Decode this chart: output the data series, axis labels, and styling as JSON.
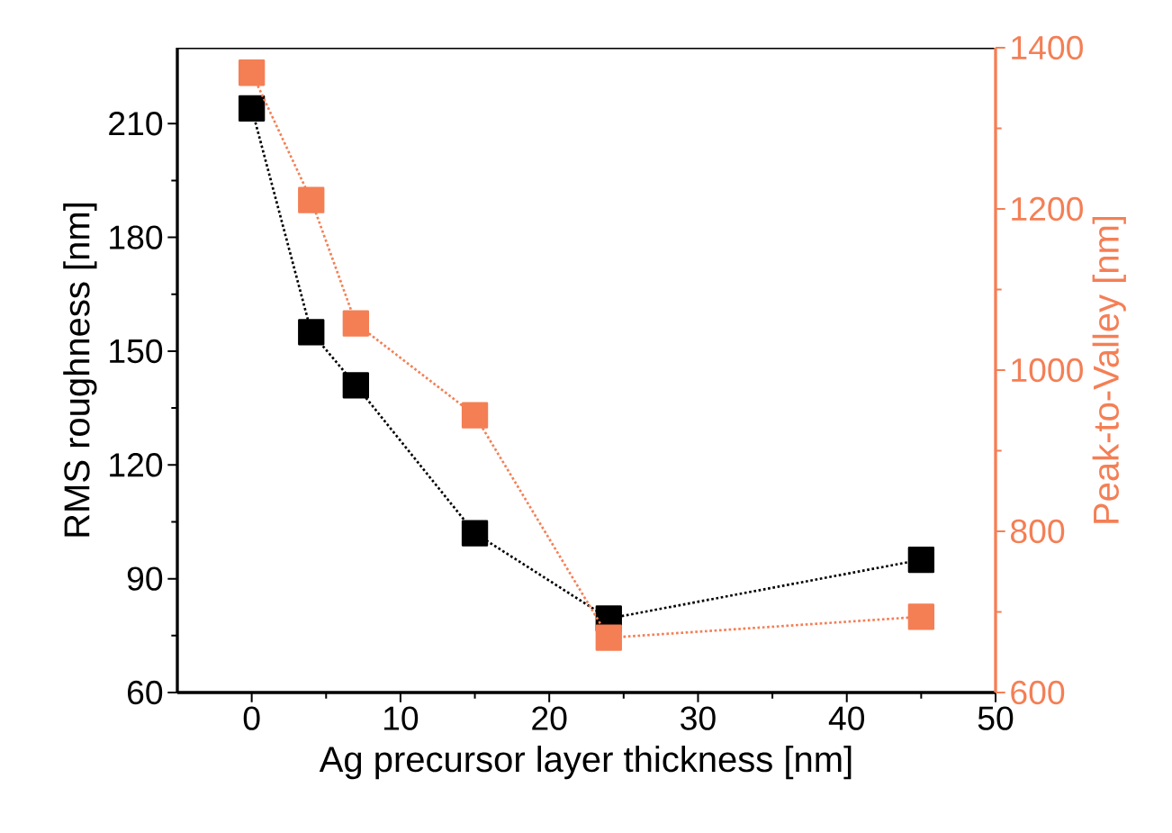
{
  "chart_data": {
    "type": "line",
    "xlabel": "Ag precursor layer thickness [nm]",
    "ylabel": "RMS roughness [nm]",
    "y2label": "Peak-to-Valley [nm]",
    "x": [
      0,
      4,
      7,
      15,
      24,
      45
    ],
    "series": [
      {
        "color": "#000000",
        "values": [
          214,
          155,
          141,
          102,
          79.5,
          95
        ]
      },
      {
        "color": "#f47f55",
        "axis": "y2",
        "values": [
          1369,
          1211,
          1058,
          944,
          668,
          694
        ]
      }
    ],
    "marker": "square",
    "line_style": "dotted",
    "grid": false,
    "legend": false,
    "xlim": [
      -5,
      50
    ],
    "xticks": [
      0,
      10,
      20,
      30,
      40,
      50
    ],
    "ylim": [
      60,
      230
    ],
    "yticks": [
      60,
      90,
      120,
      150,
      180,
      210
    ],
    "y2lim": [
      600,
      1400
    ],
    "y2ticks": [
      600,
      800,
      1000,
      1200,
      1400
    ]
  }
}
